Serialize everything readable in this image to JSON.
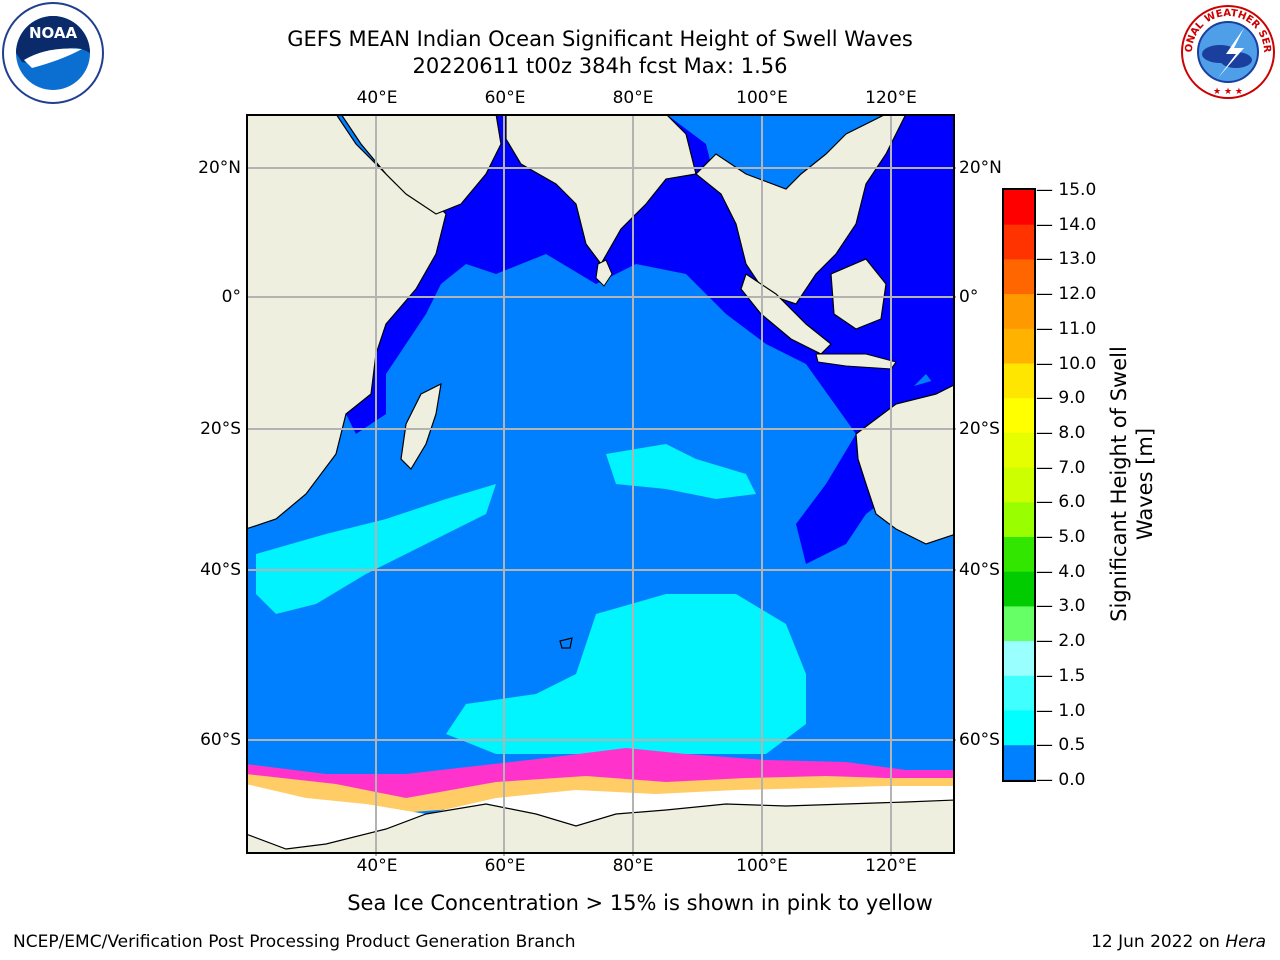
{
  "title": {
    "line1": "GEFS MEAN Indian Ocean Significant Height of Swell Waves",
    "line2": "20220611 t00z 384h fcst   Max: 1.56"
  },
  "logos": {
    "noaa": {
      "text": "NOAA",
      "icon": "noaa-logo"
    },
    "nws": {
      "text": "NATIONAL WEATHER SERVICE",
      "icon": "nws-logo"
    }
  },
  "map": {
    "longitude_ticks": [
      "40°E",
      "60°E",
      "80°E",
      "100°E",
      "120°E"
    ],
    "latitude_ticks": [
      "20°N",
      "0°",
      "20°S",
      "40°S",
      "60°S"
    ],
    "colors": {
      "land": "#efefdf",
      "sea_ice": "#ffffff",
      "swell_0_0p5": "#0000ff",
      "swell_0p5_1": "#0080ff",
      "swell_1_1p5": "#00ffff",
      "swell_1p5_2": "#40ffff",
      "ice_edge_pink": "#ff33cc",
      "ice_edge_yellow": "#ffcc66"
    }
  },
  "colorbar": {
    "labels": [
      "15.0",
      "14.0",
      "13.0",
      "12.0",
      "11.0",
      "10.0",
      "9.0",
      "8.0",
      "7.0",
      "6.0",
      "5.0",
      "4.0",
      "3.0",
      "2.0",
      "1.5",
      "1.0",
      "0.5",
      "0.0"
    ],
    "colors": [
      "#ff0000",
      "#ff3300",
      "#ff6600",
      "#ff9900",
      "#ffb300",
      "#ffe600",
      "#ffff00",
      "#e6ff00",
      "#ccff00",
      "#99ff00",
      "#33e600",
      "#00cc00",
      "#66ff66",
      "#99ffff",
      "#40ffff",
      "#00ffff",
      "#0080ff",
      "#0000ff"
    ],
    "title_line1": "Significant Height of Swell",
    "title_line2": "Waves [m]"
  },
  "caption": "Sea Ice Concentration > 15% is shown in pink to yellow",
  "footer": {
    "left": "NCEP/EMC/Verification Post Processing Product Generation Branch",
    "date": "12 Jun 2022 on ",
    "machine": "Hera"
  }
}
